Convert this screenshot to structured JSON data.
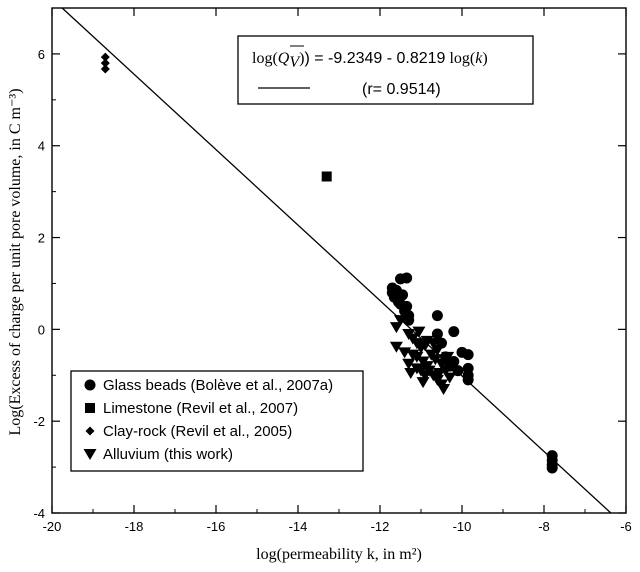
{
  "chart_data": {
    "type": "scatter",
    "xlabel": "log(permeability k, in m²)",
    "ylabel": "Log(Excess of charge per unit pore volume, in C m⁻³)",
    "xlim": [
      -20,
      -6
    ],
    "ylim": [
      -4,
      7
    ],
    "xticks": [
      -20,
      -18,
      -16,
      -14,
      -12,
      -10,
      -8,
      -6
    ],
    "yticks": [
      -4,
      -2,
      0,
      2,
      4,
      6
    ],
    "grid": false,
    "legend_position": "bottom-left",
    "fit_line": {
      "intercept": -9.2349,
      "slope": -0.8219,
      "equation_lhs": "log(",
      "equation_q": "Q",
      "equation_sub": "V",
      "equation_rhs": ") = -9.2349 - 0.8219",
      "equation_logk": "log(",
      "equation_k": "k",
      "equation_close": ")",
      "r_label": "(r= 0.9514)"
    },
    "series": [
      {
        "name": "Glass beads (Bolève et al., 2007a)",
        "marker": "circle",
        "points": [
          [
            -11.7,
            0.9
          ],
          [
            -11.7,
            0.8
          ],
          [
            -11.65,
            0.7
          ],
          [
            -11.6,
            0.85
          ],
          [
            -11.55,
            0.6
          ],
          [
            -11.5,
            1.1
          ],
          [
            -11.5,
            0.55
          ],
          [
            -11.45,
            0.75
          ],
          [
            -11.4,
            0.4
          ],
          [
            -11.35,
            1.12
          ],
          [
            -11.35,
            0.5
          ],
          [
            -11.3,
            0.3
          ],
          [
            -11.3,
            0.2
          ],
          [
            -10.6,
            0.3
          ],
          [
            -10.6,
            -0.1
          ],
          [
            -10.5,
            -0.3
          ],
          [
            -10.4,
            -0.6
          ],
          [
            -10.3,
            -0.8
          ],
          [
            -10.2,
            -0.05
          ],
          [
            -10.2,
            -0.7
          ],
          [
            -10.1,
            -0.9
          ],
          [
            -10.0,
            -0.5
          ],
          [
            -9.85,
            -0.55
          ],
          [
            -9.85,
            -0.85
          ],
          [
            -9.85,
            -1.0
          ],
          [
            -9.85,
            -1.1
          ],
          [
            -7.8,
            -2.75
          ],
          [
            -7.8,
            -2.85
          ],
          [
            -7.8,
            -2.95
          ],
          [
            -7.8,
            -3.02
          ]
        ]
      },
      {
        "name": "Limestone (Revil et al., 2007)",
        "marker": "square",
        "points": [
          [
            -13.3,
            3.33
          ]
        ]
      },
      {
        "name": "Clay-rock (Revil et al., 2005)",
        "marker": "diamond",
        "points": [
          [
            -18.7,
            5.93
          ],
          [
            -18.7,
            5.8
          ],
          [
            -18.7,
            5.67
          ]
        ]
      },
      {
        "name": "Alluvium (this work)",
        "marker": "triangle-down",
        "points": [
          [
            -11.5,
            0.2
          ],
          [
            -11.6,
            0.05
          ],
          [
            -11.3,
            -0.1
          ],
          [
            -11.2,
            -0.2
          ],
          [
            -11.1,
            -0.3
          ],
          [
            -11.0,
            -0.4
          ],
          [
            -10.9,
            -0.35
          ],
          [
            -11.4,
            -0.5
          ],
          [
            -11.6,
            -0.38
          ],
          [
            -11.1,
            -0.6
          ],
          [
            -10.95,
            -0.7
          ],
          [
            -10.85,
            -0.8
          ],
          [
            -10.8,
            -0.9
          ],
          [
            -10.7,
            -1.0
          ],
          [
            -10.6,
            -1.1
          ],
          [
            -10.5,
            -1.2
          ],
          [
            -10.9,
            -1.0
          ],
          [
            -11.1,
            -0.85
          ],
          [
            -11.3,
            -0.75
          ],
          [
            -11.0,
            -0.9
          ],
          [
            -10.75,
            -0.55
          ],
          [
            -10.6,
            -0.45
          ],
          [
            -10.5,
            -0.75
          ],
          [
            -10.4,
            -0.9
          ],
          [
            -10.3,
            -1.05
          ],
          [
            -11.2,
            -0.55
          ],
          [
            -10.85,
            -0.25
          ],
          [
            -10.7,
            -0.3
          ],
          [
            -11.05,
            -0.05
          ],
          [
            -10.55,
            -0.95
          ],
          [
            -10.65,
            -0.65
          ],
          [
            -11.25,
            -0.95
          ],
          [
            -10.45,
            -1.3
          ],
          [
            -10.95,
            -1.15
          ],
          [
            -10.35,
            -0.6
          ]
        ]
      }
    ]
  }
}
